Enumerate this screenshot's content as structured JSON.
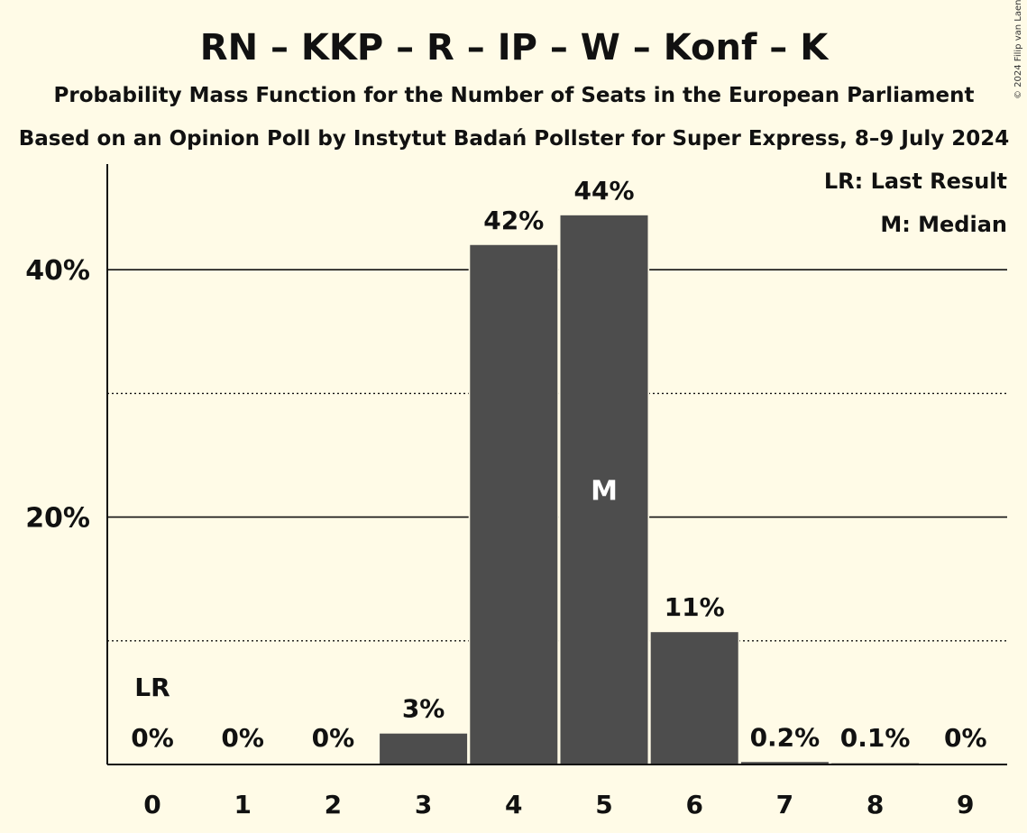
{
  "title": "RN – KKP – R – IP – W – Konf – K",
  "subtitle1": "Probability Mass Function for the Number of Seats in the European Parliament",
  "subtitle2": "Based on an Opinion Poll by Instytut Badań Pollster for Super Express, 8–9 July 2024",
  "copyright": "© 2024 Filip van Laenen",
  "legend": {
    "last_result": "LR: Last Result",
    "median": "M: Median"
  },
  "chart_data": {
    "type": "bar",
    "categories": [
      "0",
      "1",
      "2",
      "3",
      "4",
      "5",
      "6",
      "7",
      "8",
      "9"
    ],
    "values": [
      0,
      0,
      0,
      2.5,
      42,
      44.4,
      10.7,
      0.2,
      0.1,
      0
    ],
    "value_labels": [
      "0%",
      "0%",
      "0%",
      "3%",
      "42%",
      "44%",
      "11%",
      "0.2%",
      "0.1%",
      "0%"
    ],
    "ylim": [
      0,
      48
    ],
    "yticks_major": [
      20,
      40
    ],
    "ytick_labels": [
      "20%",
      "40%"
    ],
    "yticks_minor": [
      10,
      30
    ],
    "last_result_index": 0,
    "last_result_label": "LR",
    "median_index": 5,
    "median_label": "M",
    "colors": {
      "bar": "#4d4d4d",
      "background": "#fffbe7",
      "text": "#111111"
    }
  }
}
